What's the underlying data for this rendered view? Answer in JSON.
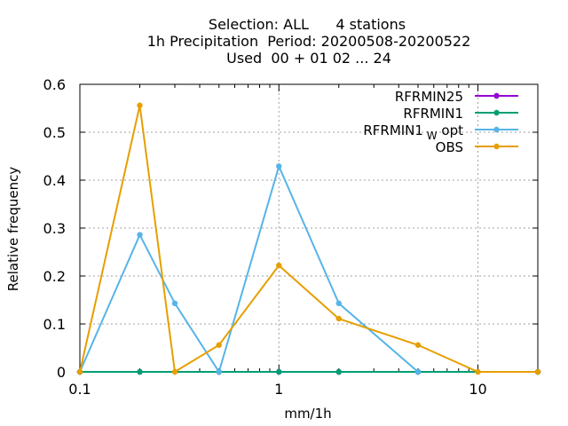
{
  "chart_data": {
    "type": "line",
    "title_lines": [
      "Selection: ALL      4 stations",
      "1h Precipitation  Period: 20200508-20200522",
      "Used  00 + 01 02 ... 24"
    ],
    "xlabel": "mm/1h",
    "ylabel": "Relative frequency",
    "x_scale": "log",
    "xlim": [
      0.1,
      20
    ],
    "ylim": [
      0,
      0.6
    ],
    "x_ticks": [
      {
        "value": 0.1,
        "label": "0.1"
      },
      {
        "value": 1,
        "label": "1"
      },
      {
        "value": 10,
        "label": "10"
      }
    ],
    "y_ticks": [
      {
        "value": 0,
        "label": "0"
      },
      {
        "value": 0.1,
        "label": "0.1"
      },
      {
        "value": 0.2,
        "label": "0.2"
      },
      {
        "value": 0.3,
        "label": "0.3"
      },
      {
        "value": 0.4,
        "label": "0.4"
      },
      {
        "value": 0.5,
        "label": "0.5"
      },
      {
        "value": 0.6,
        "label": "0.6"
      }
    ],
    "grid": true,
    "legend_position": "top-right",
    "series": [
      {
        "name": "RFRMIN25",
        "color": "#9400d3",
        "x": [
          0.1,
          0.2,
          0.5,
          1,
          2,
          5,
          20
        ],
        "y": [
          0,
          0,
          0,
          0,
          0,
          0,
          0
        ]
      },
      {
        "name": "RFRMIN1",
        "color": "#009e73",
        "x": [
          0.1,
          0.2,
          0.5,
          1,
          2,
          5,
          20
        ],
        "y": [
          0,
          0,
          0,
          0,
          0,
          0,
          0
        ]
      },
      {
        "name": "RFRMIN1",
        "name_subscript": "W",
        "name_suffix": "opt",
        "color": "#56b4e9",
        "x": [
          0.1,
          0.2,
          0.3,
          0.5,
          1,
          2,
          5
        ],
        "y": [
          0,
          0.286,
          0.143,
          0,
          0.429,
          0.143,
          0
        ]
      },
      {
        "name": "OBS",
        "color": "#e69f00",
        "x": [
          0.1,
          0.2,
          0.3,
          0.5,
          1,
          2,
          5,
          10,
          20
        ],
        "y": [
          0,
          0.556,
          0,
          0.056,
          0.222,
          0.111,
          0.056,
          0,
          0
        ]
      }
    ]
  }
}
